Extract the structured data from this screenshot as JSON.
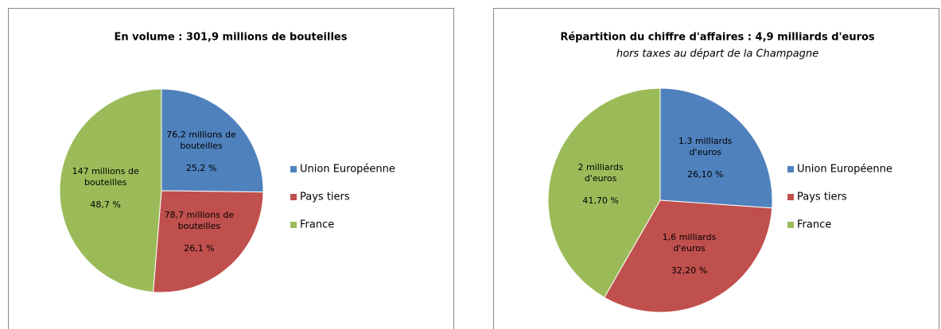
{
  "chart_data": [
    {
      "type": "pie",
      "title": "En volume : 301,9 millions de bouteilles",
      "categories": [
        "Union Européenne",
        "Pays tiers",
        "France"
      ],
      "values": [
        25.2,
        26.1,
        48.7
      ],
      "value_labels": [
        "25,2 %",
        "26,1 %",
        "48,7 %"
      ],
      "amounts": [
        "76,2 millions de bouteilles",
        "78,7 millions de bouteilles",
        "147 millions de bouteilles"
      ],
      "colors": [
        "#4f81bd",
        "#c0504d",
        "#9bbb59"
      ],
      "legend": "right"
    },
    {
      "type": "pie",
      "title": "Répartition du chiffre d'affaires : 4,9 milliards d'euros",
      "subtitle": "hors taxes au départ de la Champagne",
      "categories": [
        "Union Européenne",
        "Pays tiers",
        "France"
      ],
      "values": [
        26.1,
        32.2,
        41.7
      ],
      "value_labels": [
        "26,10 %",
        "32,20 %",
        "41,70 %"
      ],
      "amounts": [
        "1,3 milliards d'euros",
        "1,6 milliards d'euros",
        "2 milliards d'euros"
      ],
      "colors": [
        "#4f81bd",
        "#c0504d",
        "#9bbb59"
      ],
      "legend": "right"
    }
  ]
}
